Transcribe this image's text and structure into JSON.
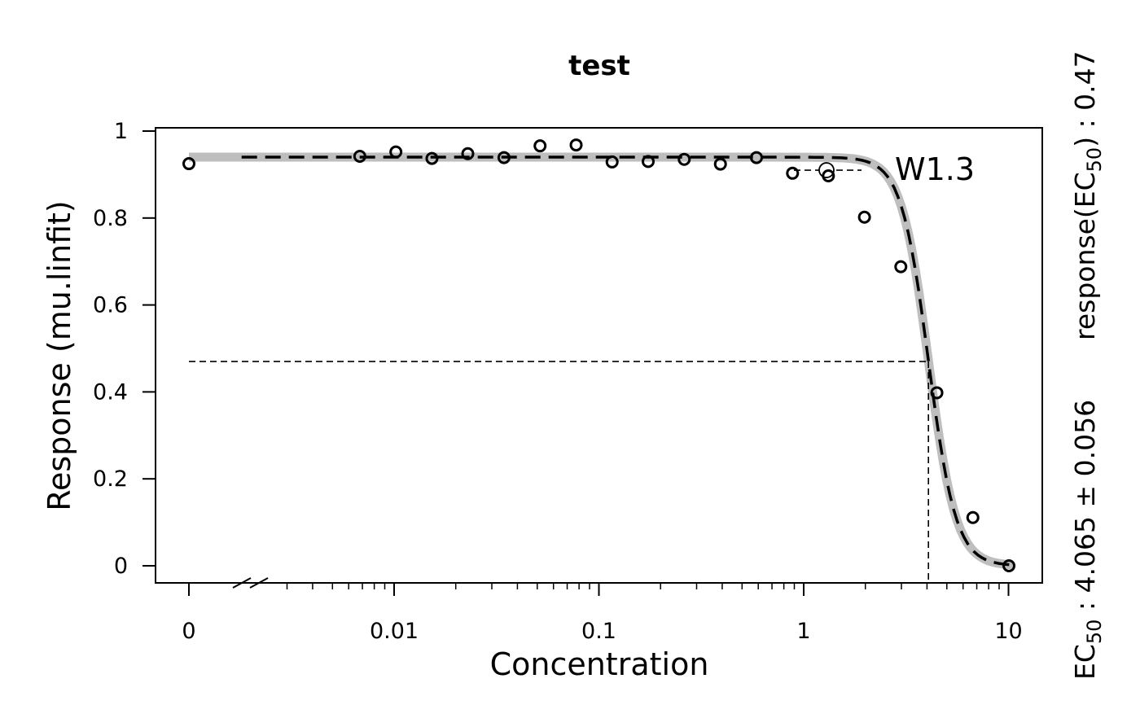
{
  "chart_data": {
    "type": "line",
    "title": "test",
    "xlabel": "Concentration",
    "ylabel": "Response (mu.linfit)",
    "x_scale": "log",
    "x_axis_break": true,
    "xlim": [
      0.001,
      12
    ],
    "ylim": [
      0,
      1
    ],
    "x_ticks": [
      {
        "value": 0,
        "label": "0"
      },
      {
        "value": 0.01,
        "label": "0.01"
      },
      {
        "value": 0.1,
        "label": "0.1"
      },
      {
        "value": 1,
        "label": "1"
      },
      {
        "value": 10,
        "label": "10"
      }
    ],
    "y_ticks": [
      {
        "value": 0,
        "label": "0"
      },
      {
        "value": 0.2,
        "label": "0.2"
      },
      {
        "value": 0.4,
        "label": "0.4"
      },
      {
        "value": 0.6,
        "label": "0.6"
      },
      {
        "value": 0.8,
        "label": "0.8"
      },
      {
        "value": 1,
        "label": "1"
      }
    ],
    "grid": false,
    "series": [
      {
        "kind": "points",
        "marker": "open-circle",
        "color": "#000000",
        "points": [
          {
            "x": 0,
            "y": 0.925
          },
          {
            "x": 0.0068,
            "y": 0.942
          },
          {
            "x": 0.0102,
            "y": 0.952
          },
          {
            "x": 0.0153,
            "y": 0.937
          },
          {
            "x": 0.0229,
            "y": 0.948
          },
          {
            "x": 0.0344,
            "y": 0.939
          },
          {
            "x": 0.0516,
            "y": 0.966
          },
          {
            "x": 0.0774,
            "y": 0.968
          },
          {
            "x": 0.116,
            "y": 0.929
          },
          {
            "x": 0.174,
            "y": 0.93
          },
          {
            "x": 0.261,
            "y": 0.935
          },
          {
            "x": 0.392,
            "y": 0.924
          },
          {
            "x": 0.588,
            "y": 0.939
          },
          {
            "x": 0.882,
            "y": 0.903
          },
          {
            "x": 1.32,
            "y": 0.897
          },
          {
            "x": 1.98,
            "y": 0.802
          },
          {
            "x": 2.98,
            "y": 0.688
          },
          {
            "x": 4.47,
            "y": 0.398
          },
          {
            "x": 6.7,
            "y": 0.111
          },
          {
            "x": 10.05,
            "y": 0.0
          }
        ]
      },
      {
        "kind": "fit-band",
        "color": "#bebebe",
        "top": 0.94,
        "ec50": 4.07,
        "slope": 6.5
      },
      {
        "name": "W1.3",
        "kind": "fit-line",
        "style": "dashed",
        "color": "#000000",
        "top": 0.94,
        "ec50": 4.07,
        "slope": 6.5
      }
    ],
    "ec50_guides": {
      "x": 4.065,
      "y": 0.47
    },
    "legend": {
      "label": "W1.3",
      "position": "top-right"
    },
    "side_labels": {
      "ec50_text": "EC",
      "ec50_sub": "50",
      "ec50_value": " :  4.065 ± 0.056",
      "resp_text": "response(EC",
      "resp_sub": "50",
      "resp_value": ") :  0.47"
    }
  }
}
